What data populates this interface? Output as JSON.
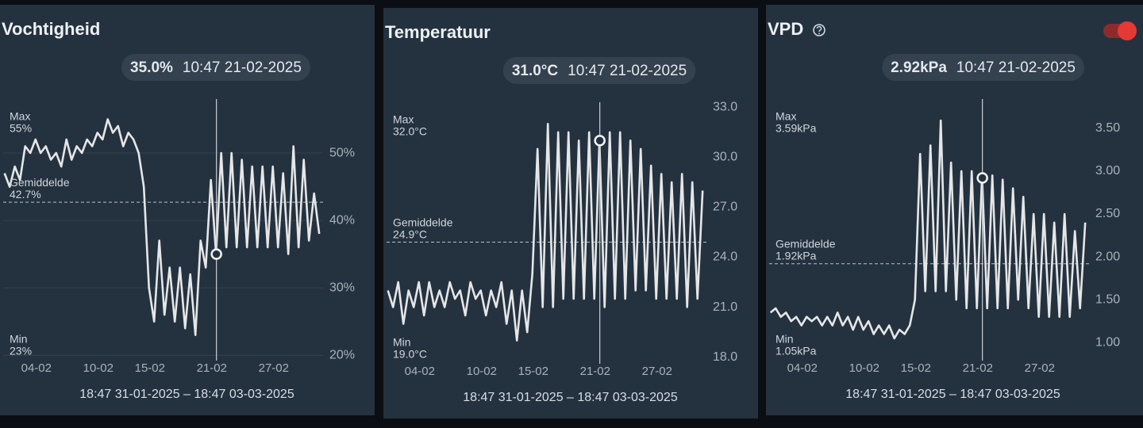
{
  "chart_data": [
    {
      "type": "line",
      "title": "Vochtigheid",
      "x": [
        "2025-01-31T22:00",
        "2025-02-01T10:00",
        "2025-02-01T22:00",
        "2025-02-02T10:00",
        "2025-02-02T22:00",
        "2025-02-03T10:00",
        "2025-02-03T22:00",
        "2025-02-04T10:00",
        "2025-02-04T22:00",
        "2025-02-05T10:00",
        "2025-02-05T22:00",
        "2025-02-06T10:00",
        "2025-02-06T22:00",
        "2025-02-07T10:00",
        "2025-02-07T22:00",
        "2025-02-08T10:00",
        "2025-02-08T22:00",
        "2025-02-09T10:00",
        "2025-02-09T22:00",
        "2025-02-10T10:00",
        "2025-02-10T22:00",
        "2025-02-11T10:00",
        "2025-02-11T22:00",
        "2025-02-12T10:00",
        "2025-02-12T22:00",
        "2025-02-13T10:00",
        "2025-02-13T22:00",
        "2025-02-14T10:00",
        "2025-02-14T22:00",
        "2025-02-15T10:00",
        "2025-02-15T22:00",
        "2025-02-16T10:00",
        "2025-02-16T22:00",
        "2025-02-17T10:00",
        "2025-02-17T22:00",
        "2025-02-18T10:00",
        "2025-02-18T22:00",
        "2025-02-19T10:00",
        "2025-02-19T22:00",
        "2025-02-20T10:00",
        "2025-02-20T22:00",
        "2025-02-21T10:00",
        "2025-02-21T22:00",
        "2025-02-22T10:00",
        "2025-02-22T22:00",
        "2025-02-23T10:00",
        "2025-02-23T22:00",
        "2025-02-24T10:00",
        "2025-02-24T22:00",
        "2025-02-25T10:00",
        "2025-02-25T22:00",
        "2025-02-26T10:00",
        "2025-02-26T22:00",
        "2025-02-27T10:00",
        "2025-02-27T22:00",
        "2025-02-28T10:00",
        "2025-02-28T22:00",
        "2025-03-01T10:00",
        "2025-03-01T22:00",
        "2025-03-02T10:00",
        "2025-03-02T22:00",
        "2025-03-03T10:00"
      ],
      "values": [
        47,
        45,
        48,
        46,
        51,
        50,
        52,
        50,
        51,
        49,
        50,
        48,
        52,
        49,
        51,
        50,
        52,
        51,
        53,
        52,
        55,
        53,
        54,
        51,
        53,
        52,
        50,
        45,
        30,
        25,
        37,
        26,
        33,
        25,
        33,
        24,
        32,
        23,
        37,
        33,
        46,
        35,
        50,
        36,
        50,
        36,
        49,
        36,
        48,
        36,
        48,
        36,
        48,
        36,
        47,
        35,
        51,
        36,
        49,
        37,
        44,
        38
      ],
      "color": "#e6e6e6",
      "grid": true,
      "xlim": [
        "2025-01-31T18:47",
        "2025-03-03T18:47"
      ],
      "xticks": [
        {
          "value": "2025-02-04T00:00",
          "label": "04-02"
        },
        {
          "value": "2025-02-10T00:00",
          "label": "10-02"
        },
        {
          "value": "2025-02-15T00:00",
          "label": "15-02"
        },
        {
          "value": "2025-02-21T00:00",
          "label": "21-02"
        },
        {
          "value": "2025-02-27T00:00",
          "label": "27-02"
        }
      ],
      "ylim": [
        19.2,
        58
      ],
      "yticks": [
        {
          "value": 20,
          "label": "20%"
        },
        {
          "value": 30,
          "label": "30%"
        },
        {
          "value": 40,
          "label": "40%"
        },
        {
          "value": 50,
          "label": "50%"
        }
      ],
      "cursor": {
        "x": "2025-02-21T10:47",
        "value": 35.0,
        "value_label": "35.0%",
        "time_label": "10:47 21-02-2025"
      },
      "max": {
        "label": "Max",
        "value": 55,
        "value_label": "55%"
      },
      "average": {
        "label": "Gemiddelde",
        "value": 42.7,
        "value_label": "42.7%"
      },
      "min": {
        "label": "Min",
        "value": 23,
        "value_label": "23%"
      },
      "range_label": "18:47 31-01-2025 – 18:47 03-03-2025"
    },
    {
      "type": "line",
      "title": "Temperatuur",
      "x": [
        "2025-01-31T22:00",
        "2025-02-01T10:00",
        "2025-02-01T22:00",
        "2025-02-02T10:00",
        "2025-02-02T22:00",
        "2025-02-03T10:00",
        "2025-02-03T22:00",
        "2025-02-04T10:00",
        "2025-02-04T22:00",
        "2025-02-05T10:00",
        "2025-02-05T22:00",
        "2025-02-06T10:00",
        "2025-02-06T22:00",
        "2025-02-07T10:00",
        "2025-02-07T22:00",
        "2025-02-08T10:00",
        "2025-02-08T22:00",
        "2025-02-09T10:00",
        "2025-02-09T22:00",
        "2025-02-10T10:00",
        "2025-02-10T22:00",
        "2025-02-11T10:00",
        "2025-02-11T22:00",
        "2025-02-12T10:00",
        "2025-02-12T22:00",
        "2025-02-13T10:00",
        "2025-02-13T22:00",
        "2025-02-14T10:00",
        "2025-02-14T22:00",
        "2025-02-15T10:00",
        "2025-02-15T22:00",
        "2025-02-16T10:00",
        "2025-02-16T22:00",
        "2025-02-17T10:00",
        "2025-02-17T22:00",
        "2025-02-18T10:00",
        "2025-02-18T22:00",
        "2025-02-19T10:00",
        "2025-02-19T22:00",
        "2025-02-20T10:00",
        "2025-02-20T22:00",
        "2025-02-21T10:00",
        "2025-02-21T22:00",
        "2025-02-22T10:00",
        "2025-02-22T22:00",
        "2025-02-23T10:00",
        "2025-02-23T22:00",
        "2025-02-24T10:00",
        "2025-02-24T22:00",
        "2025-02-25T10:00",
        "2025-02-25T22:00",
        "2025-02-26T10:00",
        "2025-02-26T22:00",
        "2025-02-27T10:00",
        "2025-02-27T22:00",
        "2025-02-28T10:00",
        "2025-02-28T22:00",
        "2025-03-01T10:00",
        "2025-03-01T22:00",
        "2025-03-02T10:00",
        "2025-03-02T22:00",
        "2025-03-03T10:00"
      ],
      "values": [
        22,
        21,
        22.5,
        20,
        22,
        21,
        22.5,
        20.5,
        22.5,
        21,
        22,
        21,
        22.5,
        21.5,
        22,
        20.5,
        22.5,
        21.5,
        22,
        20.5,
        22,
        21,
        22.5,
        20,
        22,
        19,
        22,
        19.5,
        23,
        30.5,
        21,
        32,
        21,
        31.5,
        21.5,
        31.5,
        21.5,
        31,
        21.5,
        31.5,
        21.5,
        31,
        21,
        31.5,
        21.5,
        31.5,
        21.5,
        31,
        22,
        30.5,
        22,
        29.5,
        21.5,
        29,
        21.5,
        28.5,
        21.5,
        29,
        21,
        28.5,
        21.5,
        28
      ],
      "color": "#e6e6e6",
      "grid": false,
      "xlim": [
        "2025-01-31T18:47",
        "2025-03-03T18:47"
      ],
      "xticks": [
        {
          "value": "2025-02-04T00:00",
          "label": "04-02"
        },
        {
          "value": "2025-02-10T00:00",
          "label": "10-02"
        },
        {
          "value": "2025-02-15T00:00",
          "label": "15-02"
        },
        {
          "value": "2025-02-21T00:00",
          "label": "21-02"
        },
        {
          "value": "2025-02-27T00:00",
          "label": "27-02"
        }
      ],
      "ylim": [
        17.6,
        33.3
      ],
      "yticks": [
        {
          "value": 18,
          "label": "18.0"
        },
        {
          "value": 21,
          "label": "21.0"
        },
        {
          "value": 24,
          "label": "24.0"
        },
        {
          "value": 27,
          "label": "27.0"
        },
        {
          "value": 30,
          "label": "30.0"
        },
        {
          "value": 33,
          "label": "33.0"
        }
      ],
      "cursor": {
        "x": "2025-02-21T10:47",
        "value": 31.0,
        "value_label": "31.0°C",
        "time_label": "10:47 21-02-2025"
      },
      "max": {
        "label": "Max",
        "value": 32.0,
        "value_label": "32.0°C"
      },
      "average": {
        "label": "Gemiddelde",
        "value": 24.9,
        "value_label": "24.9°C"
      },
      "min": {
        "label": "Min",
        "value": 19.0,
        "value_label": "19.0°C"
      },
      "range_label": "18:47 31-01-2025 – 18:47 03-03-2025"
    },
    {
      "type": "line",
      "title": "VPD",
      "x": [
        "2025-01-31T22:00",
        "2025-02-01T10:00",
        "2025-02-01T22:00",
        "2025-02-02T10:00",
        "2025-02-02T22:00",
        "2025-02-03T10:00",
        "2025-02-03T22:00",
        "2025-02-04T10:00",
        "2025-02-04T22:00",
        "2025-02-05T10:00",
        "2025-02-05T22:00",
        "2025-02-06T10:00",
        "2025-02-06T22:00",
        "2025-02-07T10:00",
        "2025-02-07T22:00",
        "2025-02-08T10:00",
        "2025-02-08T22:00",
        "2025-02-09T10:00",
        "2025-02-09T22:00",
        "2025-02-10T10:00",
        "2025-02-10T22:00",
        "2025-02-11T10:00",
        "2025-02-11T22:00",
        "2025-02-12T10:00",
        "2025-02-12T22:00",
        "2025-02-13T10:00",
        "2025-02-13T22:00",
        "2025-02-14T10:00",
        "2025-02-14T22:00",
        "2025-02-15T10:00",
        "2025-02-15T22:00",
        "2025-02-16T10:00",
        "2025-02-16T22:00",
        "2025-02-17T10:00",
        "2025-02-17T22:00",
        "2025-02-18T10:00",
        "2025-02-18T22:00",
        "2025-02-19T10:00",
        "2025-02-19T22:00",
        "2025-02-20T10:00",
        "2025-02-20T22:00",
        "2025-02-21T10:00",
        "2025-02-21T22:00",
        "2025-02-22T10:00",
        "2025-02-22T22:00",
        "2025-02-23T10:00",
        "2025-02-23T22:00",
        "2025-02-24T10:00",
        "2025-02-24T22:00",
        "2025-02-25T10:00",
        "2025-02-25T22:00",
        "2025-02-26T10:00",
        "2025-02-26T22:00",
        "2025-02-27T10:00",
        "2025-02-27T22:00",
        "2025-02-28T10:00",
        "2025-02-28T22:00",
        "2025-03-01T10:00",
        "2025-03-01T22:00",
        "2025-03-02T10:00",
        "2025-03-02T22:00",
        "2025-03-03T10:00"
      ],
      "values": [
        1.35,
        1.4,
        1.3,
        1.35,
        1.25,
        1.3,
        1.2,
        1.3,
        1.25,
        1.3,
        1.2,
        1.3,
        1.2,
        1.35,
        1.2,
        1.3,
        1.15,
        1.3,
        1.15,
        1.25,
        1.1,
        1.2,
        1.1,
        1.2,
        1.05,
        1.15,
        1.1,
        1.2,
        1.5,
        3.2,
        1.6,
        3.3,
        1.6,
        3.59,
        1.6,
        3.1,
        1.5,
        3.0,
        1.4,
        3.0,
        1.4,
        2.95,
        1.4,
        2.95,
        1.4,
        2.9,
        1.4,
        2.8,
        1.5,
        2.7,
        1.4,
        2.5,
        1.3,
        2.5,
        1.3,
        2.4,
        1.3,
        2.5,
        1.3,
        2.3,
        1.4,
        2.4
      ],
      "color": "#e6e6e6",
      "grid": false,
      "xlim": [
        "2025-01-31T18:47",
        "2025-03-03T18:47"
      ],
      "xticks": [
        {
          "value": "2025-02-04T00:00",
          "label": "04-02"
        },
        {
          "value": "2025-02-10T00:00",
          "label": "10-02"
        },
        {
          "value": "2025-02-15T00:00",
          "label": "15-02"
        },
        {
          "value": "2025-02-21T00:00",
          "label": "21-02"
        },
        {
          "value": "2025-02-27T00:00",
          "label": "27-02"
        }
      ],
      "ylim": [
        0.79,
        3.84
      ],
      "yticks": [
        {
          "value": 1,
          "label": "1.00"
        },
        {
          "value": 1.5,
          "label": "1.50"
        },
        {
          "value": 2,
          "label": "2.00"
        },
        {
          "value": 2.5,
          "label": "2.50"
        },
        {
          "value": 3,
          "label": "3.00"
        },
        {
          "value": 3.5,
          "label": "3.50"
        }
      ],
      "cursor": {
        "x": "2025-02-21T10:47",
        "value": 2.92,
        "value_label": "2.92kPa",
        "time_label": "10:47 21-02-2025"
      },
      "max": {
        "label": "Max",
        "value": 3.59,
        "value_label": "3.59kPa"
      },
      "average": {
        "label": "Gemiddelde",
        "value": 1.92,
        "value_label": "1.92kPa"
      },
      "min": {
        "label": "Min",
        "value": 1.05,
        "value_label": "1.05kPa"
      },
      "range_label": "18:47 31-01-2025 – 18:47 03-03-2025"
    }
  ]
}
